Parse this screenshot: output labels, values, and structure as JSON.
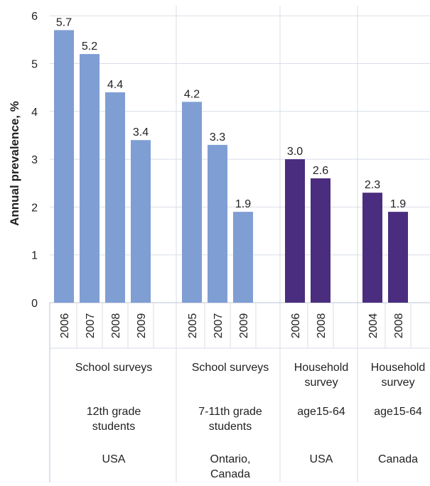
{
  "chart_data": {
    "type": "bar",
    "ylabel": "Annual prevalence, %",
    "ylim": [
      0,
      6
    ],
    "yticks": [
      0,
      1,
      2,
      3,
      4,
      5,
      6
    ],
    "grid": true,
    "colors": {
      "school": "#7f9ed4",
      "household": "#4a2d7e",
      "grid": "#d8dde6",
      "axis": "#b8c3d6"
    },
    "groups": [
      {
        "survey_type": "School surveys",
        "population": "12th grade students",
        "region": "USA",
        "color_key": "school",
        "bars": [
          {
            "year": "2006",
            "value": 5.7,
            "label": "5.7"
          },
          {
            "year": "2007",
            "value": 5.2,
            "label": "5.2"
          },
          {
            "year": "2008",
            "value": 4.4,
            "label": "4.4"
          },
          {
            "year": "2009",
            "value": 3.4,
            "label": "3.4"
          }
        ]
      },
      {
        "survey_type": "School surveys",
        "population": "7-11th grade students",
        "region": "Ontario, Canada",
        "color_key": "school",
        "bars": [
          {
            "year": "2005",
            "value": 4.2,
            "label": "4.2"
          },
          {
            "year": "2007",
            "value": 3.3,
            "label": "3.3"
          },
          {
            "year": "2009",
            "value": 1.9,
            "label": "1.9"
          }
        ]
      },
      {
        "survey_type": "Household survey",
        "population": "age15-64",
        "region": "USA",
        "color_key": "household",
        "bars": [
          {
            "year": "2006",
            "value": 3.0,
            "label": "3.0"
          },
          {
            "year": "2008",
            "value": 2.6,
            "label": "2.6"
          }
        ]
      },
      {
        "survey_type": "Household survey",
        "population": "age15-64",
        "region": "Canada",
        "color_key": "household",
        "bars": [
          {
            "year": "2004",
            "value": 2.3,
            "label": "2.3"
          },
          {
            "year": "2008",
            "value": 1.9,
            "label": "1.9"
          }
        ]
      }
    ]
  }
}
